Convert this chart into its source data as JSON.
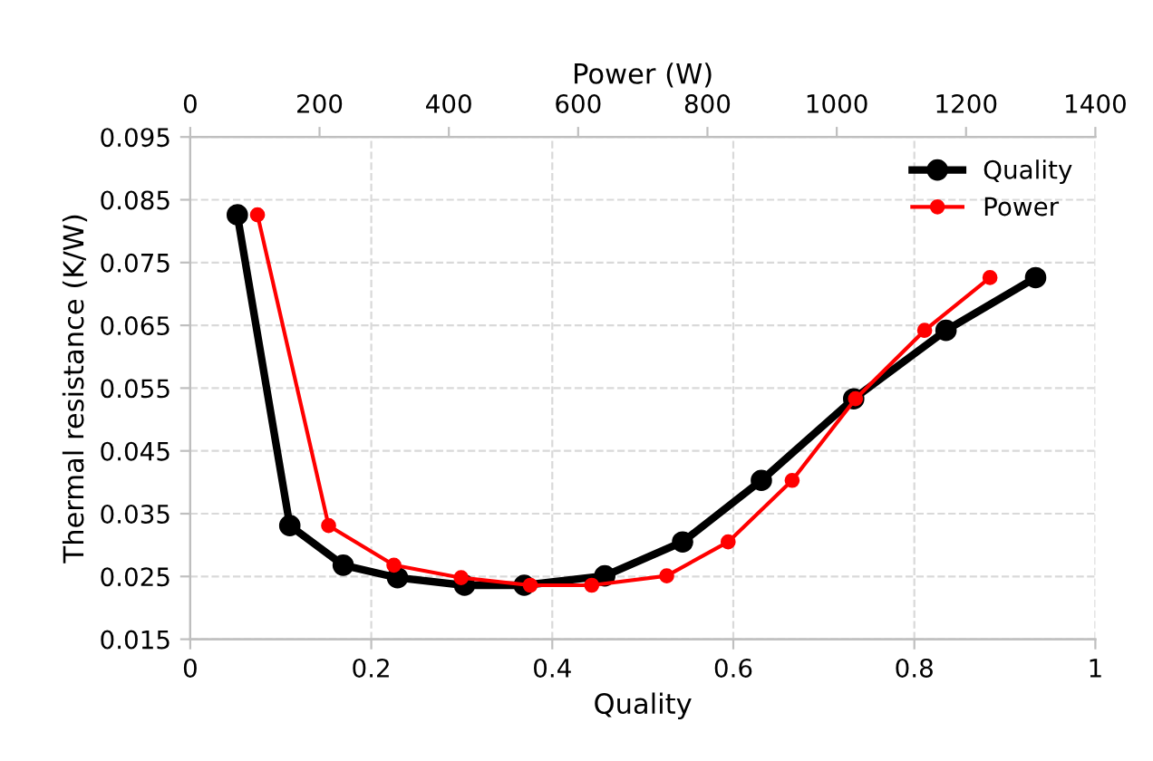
{
  "chart_data": {
    "type": "line",
    "xlabel": "Quality",
    "x2label": "Power (W)",
    "ylabel": "Thermal resistance (K/W)",
    "xlim": [
      0,
      1
    ],
    "xticks": [
      0,
      0.2,
      0.4,
      0.6,
      0.8,
      1
    ],
    "x2lim": [
      0,
      1400
    ],
    "x2ticks": [
      0,
      200,
      400,
      600,
      800,
      1000,
      1200,
      1400
    ],
    "ylim": [
      0.015,
      0.095
    ],
    "yticks": [
      0.015,
      0.025,
      0.035,
      0.045,
      0.055,
      0.065,
      0.075,
      0.085,
      0.095
    ],
    "grid": true,
    "legend": "top right",
    "marker": "circle",
    "line_style": "solid",
    "series": [
      {
        "name": "Quality",
        "color": "#000000",
        "x": [
          0.052,
          0.11,
          0.169,
          0.229,
          0.303,
          0.369,
          0.458,
          0.544,
          0.631,
          0.733,
          0.835,
          0.934
        ],
        "values": [
          0.0826,
          0.0331,
          0.0268,
          0.0248,
          0.0236,
          0.0236,
          0.0251,
          0.0305,
          0.0403,
          0.0533,
          0.0642,
          0.0726
        ]
      },
      {
        "name": "Power",
        "color": "#ff0000",
        "axis": "x2",
        "x": [
          104,
          214,
          315,
          419,
          526,
          621,
          737,
          832,
          931,
          1029,
          1136,
          1237
        ],
        "values": [
          0.0826,
          0.0331,
          0.0268,
          0.0248,
          0.0236,
          0.0236,
          0.0251,
          0.0305,
          0.0403,
          0.0533,
          0.0642,
          0.0726
        ]
      }
    ]
  }
}
